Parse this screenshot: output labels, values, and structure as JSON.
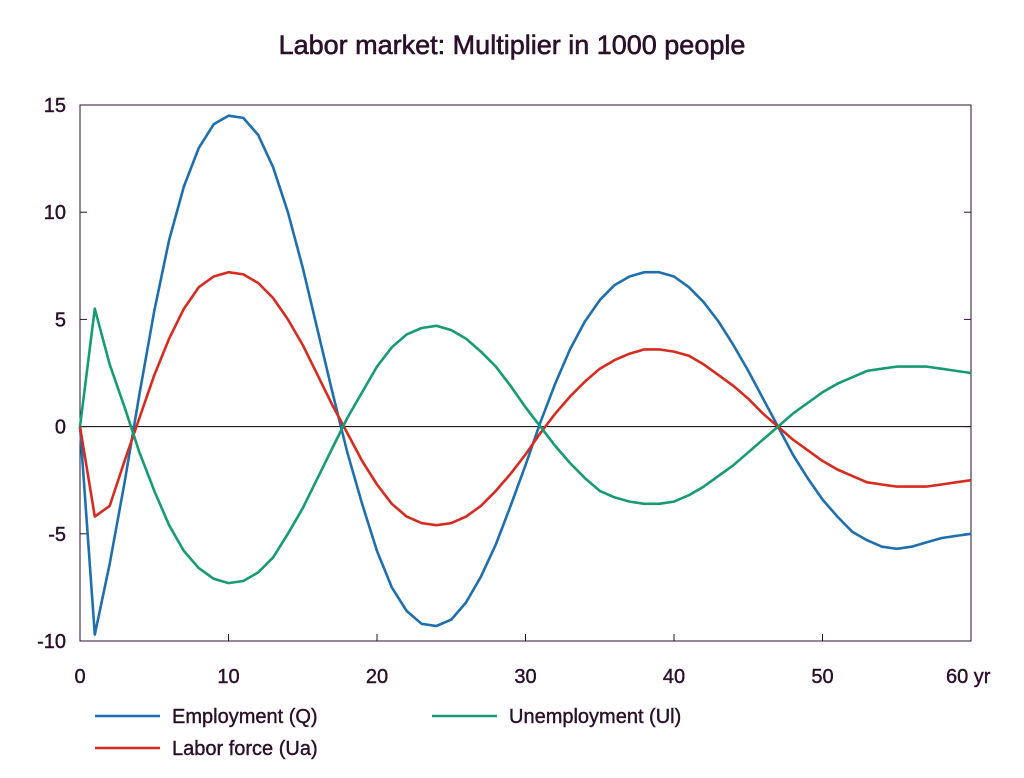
{
  "chart_data": {
    "type": "line",
    "title": "Labor market: Multiplier in 1000 people",
    "xlabel": "",
    "ylabel": "",
    "x_unit_label": "yr",
    "xlim": [
      0,
      60
    ],
    "ylim": [
      -10,
      15
    ],
    "x_ticks": [
      0,
      10,
      20,
      30,
      40,
      50,
      60
    ],
    "x_tick_labels": [
      "0",
      "10",
      "20",
      "30",
      "40",
      "50",
      "60 yr"
    ],
    "y_ticks": [
      -10,
      -5,
      0,
      5,
      10,
      15
    ],
    "y_tick_labels": [
      "-10",
      "-5",
      "0",
      "5",
      "10",
      "15"
    ],
    "grid": false,
    "zero_line": true,
    "legend_position": "bottom",
    "series": [
      {
        "name": "Employment (Q)",
        "color": "#1f6fad",
        "x": [
          0,
          1,
          2,
          3,
          4,
          5,
          6,
          7,
          8,
          9,
          10,
          11,
          12,
          13,
          14,
          15,
          16,
          17,
          18,
          19,
          20,
          21,
          22,
          23,
          24,
          25,
          26,
          27,
          28,
          29,
          30,
          31,
          32,
          33,
          34,
          35,
          36,
          37,
          38,
          39,
          40,
          41,
          42,
          43,
          44,
          45,
          46,
          47,
          48,
          49,
          50,
          51,
          52,
          53,
          54,
          55,
          56,
          57,
          58,
          59,
          60
        ],
        "values": [
          0,
          -9.7,
          -6.4,
          -2.6,
          1.5,
          5.4,
          8.7,
          11.2,
          13.0,
          14.1,
          14.5,
          14.4,
          13.6,
          12.1,
          10.0,
          7.4,
          4.5,
          1.6,
          -1.2,
          -3.6,
          -5.8,
          -7.5,
          -8.6,
          -9.2,
          -9.3,
          -9.0,
          -8.2,
          -7.0,
          -5.5,
          -3.7,
          -1.8,
          0.2,
          2.0,
          3.6,
          4.9,
          5.9,
          6.6,
          7.0,
          7.2,
          7.2,
          7.0,
          6.5,
          5.8,
          4.9,
          3.8,
          2.6,
          1.3,
          0.0,
          -1.3,
          -2.4,
          -3.4,
          -4.2,
          -4.9,
          -5.3,
          -5.6,
          -5.7,
          -5.6,
          -5.4,
          -5.2,
          -5.1,
          -5.0
        ]
      },
      {
        "name": "Labor force (Ua)",
        "color": "#d62b1f",
        "x": [
          0,
          1,
          2,
          3,
          4,
          5,
          6,
          7,
          8,
          9,
          10,
          11,
          12,
          13,
          14,
          15,
          16,
          17,
          18,
          19,
          20,
          21,
          22,
          23,
          24,
          25,
          26,
          27,
          28,
          29,
          30,
          31,
          32,
          33,
          34,
          35,
          36,
          37,
          38,
          39,
          40,
          41,
          42,
          43,
          44,
          45,
          46,
          47,
          48,
          49,
          50,
          51,
          52,
          53,
          54,
          55,
          56,
          57,
          58,
          59,
          60
        ],
        "values": [
          0,
          -4.2,
          -3.7,
          -1.6,
          0.4,
          2.4,
          4.1,
          5.5,
          6.5,
          7.0,
          7.2,
          7.1,
          6.7,
          6.0,
          5.0,
          3.8,
          2.4,
          1.0,
          -0.3,
          -1.6,
          -2.7,
          -3.6,
          -4.2,
          -4.5,
          -4.6,
          -4.5,
          -4.2,
          -3.7,
          -3.0,
          -2.2,
          -1.3,
          -0.3,
          0.6,
          1.4,
          2.1,
          2.7,
          3.1,
          3.4,
          3.6,
          3.6,
          3.5,
          3.3,
          2.9,
          2.4,
          1.9,
          1.3,
          0.6,
          0.0,
          -0.6,
          -1.1,
          -1.6,
          -2.0,
          -2.3,
          -2.6,
          -2.7,
          -2.8,
          -2.8,
          -2.8,
          -2.7,
          -2.6,
          -2.5
        ]
      },
      {
        "name": "Unemployment (Ul)",
        "color": "#169b72",
        "x": [
          0,
          1,
          2,
          3,
          4,
          5,
          6,
          7,
          8,
          9,
          10,
          11,
          12,
          13,
          14,
          15,
          16,
          17,
          18,
          19,
          20,
          21,
          22,
          23,
          24,
          25,
          26,
          27,
          28,
          29,
          30,
          31,
          32,
          33,
          34,
          35,
          36,
          37,
          38,
          39,
          40,
          41,
          42,
          43,
          44,
          45,
          46,
          47,
          48,
          49,
          50,
          51,
          52,
          53,
          54,
          55,
          56,
          57,
          58,
          59,
          60
        ],
        "values": [
          0,
          5.5,
          2.9,
          0.9,
          -1.2,
          -3.0,
          -4.6,
          -5.8,
          -6.6,
          -7.1,
          -7.3,
          -7.2,
          -6.8,
          -6.1,
          -5.0,
          -3.8,
          -2.4,
          -1.0,
          0.4,
          1.6,
          2.8,
          3.7,
          4.3,
          4.6,
          4.7,
          4.5,
          4.1,
          3.5,
          2.8,
          1.9,
          0.9,
          0.0,
          -0.9,
          -1.7,
          -2.4,
          -3.0,
          -3.3,
          -3.5,
          -3.6,
          -3.6,
          -3.5,
          -3.2,
          -2.8,
          -2.3,
          -1.8,
          -1.2,
          -0.6,
          0.0,
          0.6,
          1.1,
          1.6,
          2.0,
          2.3,
          2.6,
          2.7,
          2.8,
          2.8,
          2.8,
          2.7,
          2.6,
          2.5
        ]
      }
    ]
  }
}
